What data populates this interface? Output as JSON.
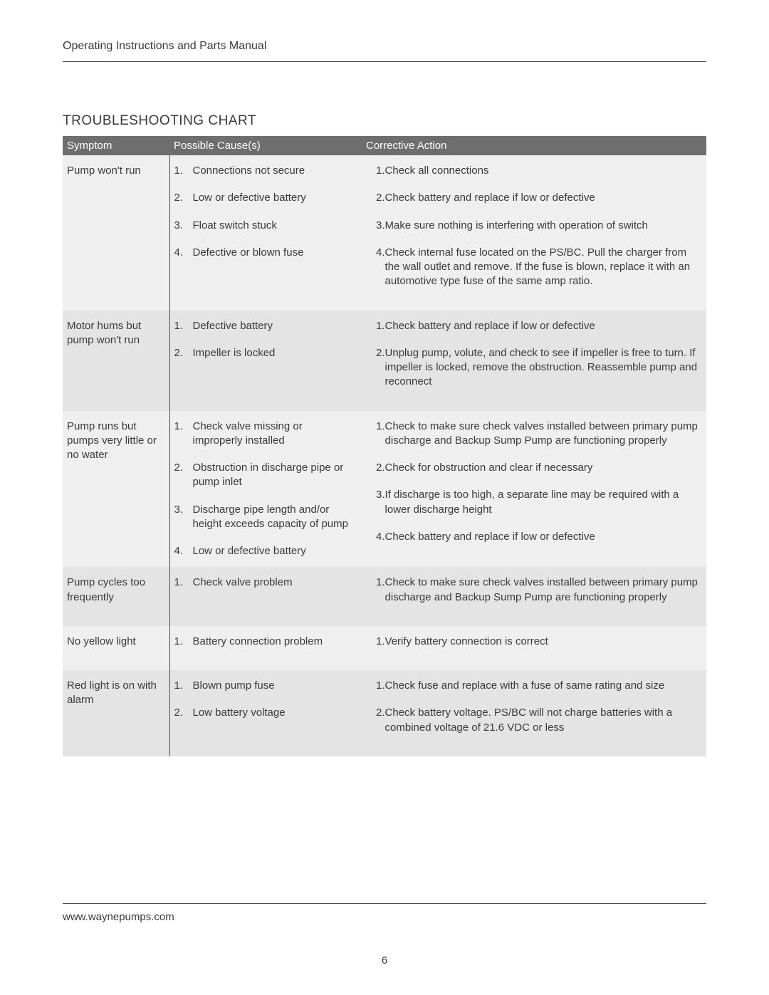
{
  "doc_header": "Operating Instructions and Parts Manual",
  "section_title": "TROUBLESHOOTING CHART",
  "columns": {
    "symptom": "Symptom",
    "cause": "Possible Cause(s)",
    "action": "Corrective Action"
  },
  "rows": [
    {
      "band": "a",
      "symptom": "Pump won't run",
      "causes": [
        "Connections not secure",
        "Low or defective battery",
        "Float switch stuck",
        "Defective or blown fuse"
      ],
      "actions": [
        "Check all connections",
        "Check battery and replace if low or defective",
        "Make sure nothing is interfering with operation of switch",
        "Check internal fuse located on the PS/BC. Pull the charger from the wall outlet and remove. If the fuse is blown, replace it with an automotive type fuse of the same amp ratio."
      ]
    },
    {
      "band": "b",
      "symptom": "Motor hums but pump won't run",
      "causes": [
        "Defective battery",
        "Impeller is locked"
      ],
      "actions": [
        "Check battery and replace if low or defective",
        "Unplug pump, volute, and check to see if impeller is free to turn. If impeller is locked, remove the obstruction. Reassemble pump and reconnect"
      ]
    },
    {
      "band": "a",
      "symptom": "Pump runs but pumps very little or no water",
      "causes": [
        "Check valve missing or improperly installed",
        "Obstruction in discharge pipe or pump inlet",
        "Discharge pipe length and/or height exceeds capacity of pump",
        "Low or defective battery"
      ],
      "actions": [
        "Check to make sure check valves installed between primary pump discharge and Backup Sump Pump are functioning properly",
        "Check for obstruction and clear if necessary",
        "If discharge is too high, a separate line may be required with a lower discharge height",
        "Check battery and replace if low or defective"
      ]
    },
    {
      "band": "b",
      "symptom": "Pump cycles too frequently",
      "causes": [
        "Check valve problem"
      ],
      "actions": [
        "Check to make sure check valves installed between primary pump discharge and Backup Sump Pump are functioning properly"
      ]
    },
    {
      "band": "a",
      "symptom": "No yellow light",
      "causes": [
        "Battery connection problem"
      ],
      "actions": [
        "Verify battery connection is correct"
      ]
    },
    {
      "band": "b",
      "symptom": "Red light is on with alarm",
      "causes": [
        "Blown pump fuse",
        "Low battery voltage"
      ],
      "actions": [
        "Check fuse and replace with a fuse of same rating and size",
        "Check battery voltage. PS/BC will not charge batteries with a combined voltage of 21.6 VDC or less"
      ]
    }
  ],
  "footer_url": "www.waynepumps.com",
  "page_number": "6"
}
